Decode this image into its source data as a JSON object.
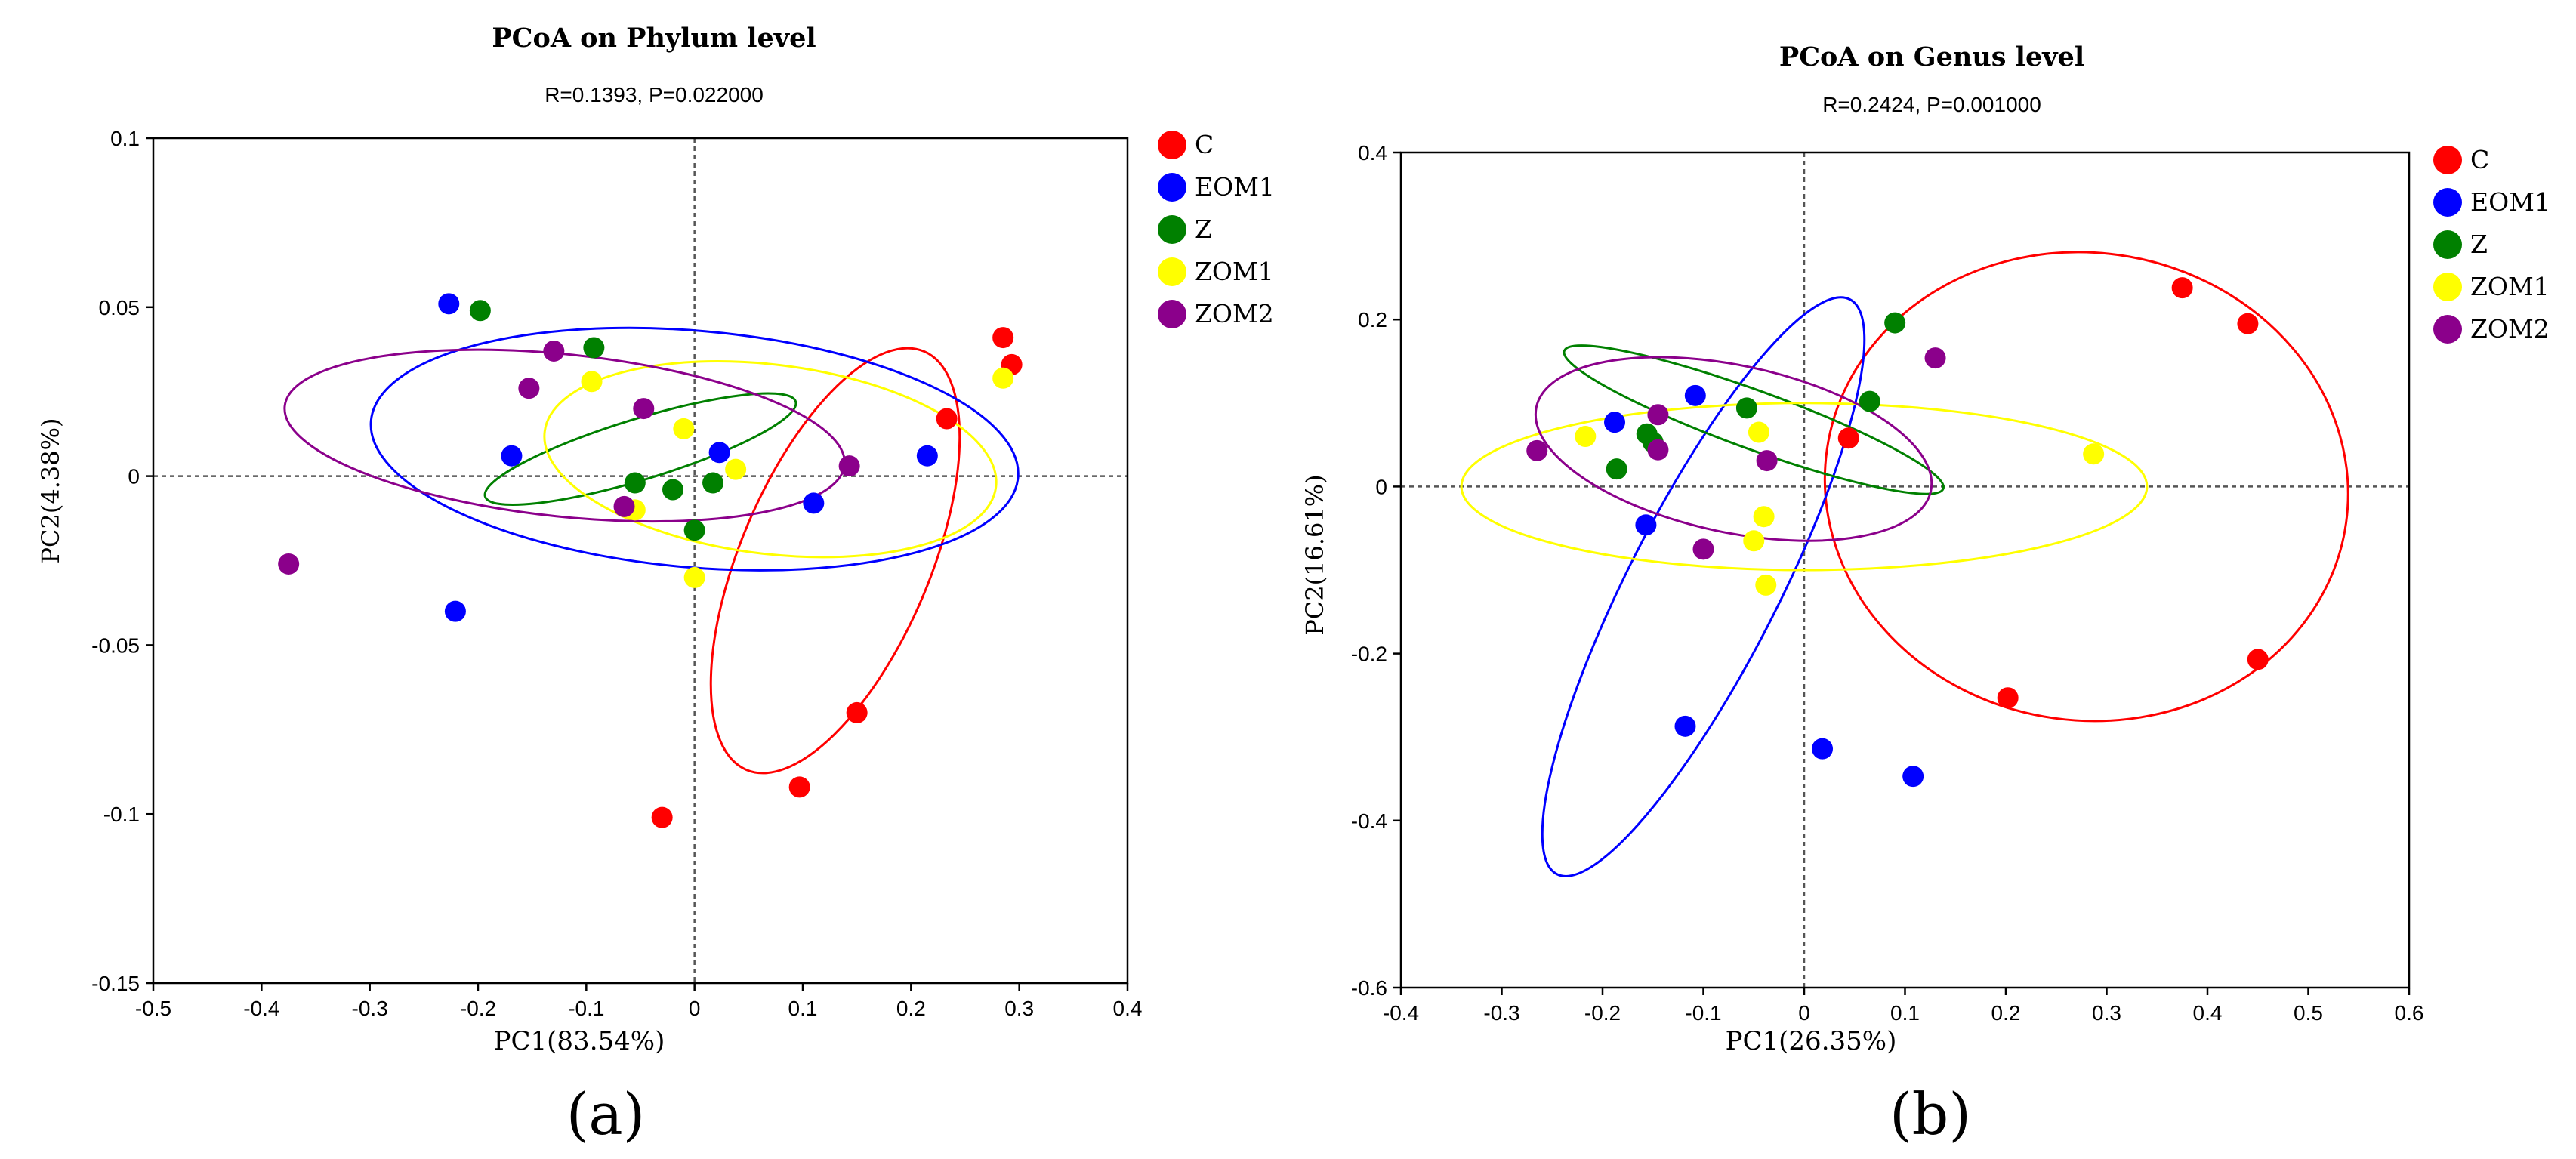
{
  "chart_data": [
    {
      "type": "scatter",
      "title": "PCoA on Phylum level",
      "subtitle": "R=0.1393, P=0.022000",
      "xlabel": "PC1(83.54%)",
      "ylabel": "PC2(4.38%)",
      "panel_label": "(a)",
      "xlim": [
        -0.5,
        0.4
      ],
      "ylim": [
        -0.15,
        0.1
      ],
      "xticks": [
        -0.5,
        -0.4,
        -0.3,
        -0.2,
        -0.1,
        0,
        0.1,
        0.2,
        0.3,
        0.4
      ],
      "xtick_labels": [
        "-0.5",
        "-0.4",
        "-0.3",
        "-0.2",
        "-0.1",
        "0",
        "0.1",
        "0.2",
        "0.3",
        "0.4"
      ],
      "yticks": [
        -0.15,
        -0.1,
        -0.05,
        0,
        0.05,
        0.1
      ],
      "ytick_labels": [
        "-0.15",
        "-0.1",
        "-0.05",
        "0",
        "0.05",
        "0.1"
      ],
      "reference_lines": {
        "x": 0,
        "y": 0
      },
      "legend_position": "right",
      "series": [
        {
          "name": "C",
          "color": "#ff0000",
          "points": [
            [
              0.285,
              0.041
            ],
            [
              0.293,
              0.033
            ],
            [
              0.233,
              0.017
            ],
            [
              0.15,
              -0.07
            ],
            [
              0.097,
              -0.092
            ],
            [
              -0.03,
              -0.101
            ]
          ],
          "ellipse": {
            "cx": 0.13,
            "cy": -0.025,
            "rx": 0.21,
            "ry": 0.028,
            "angle": -67
          }
        },
        {
          "name": "EOM1",
          "color": "#0000ff",
          "points": [
            [
              -0.227,
              0.051
            ],
            [
              -0.169,
              0.006
            ],
            [
              0.023,
              0.007
            ],
            [
              0.11,
              -0.008
            ],
            [
              0.215,
              0.006
            ],
            [
              -0.221,
              -0.04
            ]
          ],
          "ellipse": {
            "cx": 0.0,
            "cy": 0.008,
            "rx": 0.3,
            "ry": 0.035,
            "angle": 5
          }
        },
        {
          "name": "Z",
          "color": "#008000",
          "points": [
            [
              -0.198,
              0.049
            ],
            [
              -0.093,
              0.038
            ],
            [
              -0.055,
              -0.002
            ],
            [
              -0.02,
              -0.004
            ],
            [
              0.017,
              -0.002
            ],
            [
              0.0,
              -0.016
            ]
          ],
          "ellipse": {
            "cx": -0.05,
            "cy": 0.008,
            "rx": 0.15,
            "ry": 0.009,
            "angle": -17
          }
        },
        {
          "name": "ZOM1",
          "color": "#ffff00",
          "points": [
            [
              -0.095,
              0.028
            ],
            [
              -0.01,
              0.014
            ],
            [
              0.038,
              0.002
            ],
            [
              -0.055,
              -0.01
            ],
            [
              0.0,
              -0.03
            ],
            [
              0.285,
              0.029
            ]
          ],
          "ellipse": {
            "cx": 0.07,
            "cy": 0.005,
            "rx": 0.21,
            "ry": 0.028,
            "angle": 7
          }
        },
        {
          "name": "ZOM2",
          "color": "#8b008b",
          "points": [
            [
              -0.13,
              0.037
            ],
            [
              -0.153,
              0.026
            ],
            [
              -0.047,
              0.02
            ],
            [
              0.143,
              0.003
            ],
            [
              -0.065,
              -0.009
            ],
            [
              -0.375,
              -0.026
            ]
          ],
          "ellipse": {
            "cx": -0.12,
            "cy": 0.012,
            "rx": 0.26,
            "ry": 0.024,
            "angle": 6
          }
        }
      ]
    },
    {
      "type": "scatter",
      "title": "PCoA on Genus level",
      "subtitle": "R=0.2424, P=0.001000",
      "xlabel": "PC1(26.35%)",
      "ylabel": "PC2(16.61%)",
      "panel_label": "(b)",
      "xlim": [
        -0.4,
        0.6
      ],
      "ylim": [
        -0.6,
        0.4
      ],
      "xticks": [
        -0.4,
        -0.3,
        -0.2,
        -0.1,
        0,
        0.1,
        0.2,
        0.3,
        0.4,
        0.5,
        0.6
      ],
      "xtick_labels": [
        "-0.4",
        "-0.3",
        "-0.2",
        "-0.1",
        "0",
        "0.1",
        "0.2",
        "0.3",
        "0.4",
        "0.5",
        "0.6"
      ],
      "yticks": [
        -0.6,
        -0.4,
        -0.2,
        0,
        0.2,
        0.4
      ],
      "ytick_labels": [
        "-0.6",
        "-0.4",
        "-0.2",
        "0",
        "0.2",
        "0.4"
      ],
      "reference_lines": {
        "x": 0,
        "y": 0
      },
      "legend_position": "right",
      "series": [
        {
          "name": "C",
          "color": "#ff0000",
          "points": [
            [
              0.375,
              0.238
            ],
            [
              0.44,
              0.195
            ],
            [
              0.044,
              0.058
            ],
            [
              0.45,
              -0.207
            ],
            [
              0.202,
              -0.253
            ]
          ],
          "ellipse": {
            "cx": 0.28,
            "cy": 0.0,
            "rx": 0.26,
            "ry": 0.28,
            "angle": 8
          }
        },
        {
          "name": "EOM1",
          "color": "#0000ff",
          "points": [
            [
              -0.188,
              0.077
            ],
            [
              -0.108,
              0.109
            ],
            [
              -0.157,
              -0.046
            ],
            [
              -0.118,
              -0.287
            ],
            [
              0.018,
              -0.314
            ],
            [
              0.108,
              -0.347
            ]
          ],
          "ellipse": {
            "cx": -0.1,
            "cy": -0.12,
            "rx": 0.32,
            "ry": 0.09,
            "angle": -63
          }
        },
        {
          "name": "Z",
          "color": "#008000",
          "points": [
            [
              0.09,
              0.196
            ],
            [
              -0.057,
              0.094
            ],
            [
              0.065,
              0.102
            ],
            [
              -0.156,
              0.063
            ],
            [
              -0.15,
              0.053
            ],
            [
              -0.186,
              0.021
            ]
          ],
          "ellipse": {
            "cx": -0.05,
            "cy": 0.08,
            "rx": 0.2,
            "ry": 0.035,
            "angle": 20
          }
        },
        {
          "name": "ZOM1",
          "color": "#ffff00",
          "points": [
            [
              -0.217,
              0.06
            ],
            [
              -0.045,
              0.065
            ],
            [
              0.287,
              0.039
            ],
            [
              -0.04,
              -0.036
            ],
            [
              -0.05,
              -0.065
            ],
            [
              -0.038,
              -0.118
            ]
          ],
          "ellipse": {
            "cx": 0.0,
            "cy": 0.0,
            "rx": 0.34,
            "ry": 0.1,
            "angle": 0
          }
        },
        {
          "name": "ZOM2",
          "color": "#8b008b",
          "points": [
            [
              -0.265,
              0.043
            ],
            [
              -0.145,
              0.086
            ],
            [
              -0.145,
              0.044
            ],
            [
              -0.037,
              0.031
            ],
            [
              0.13,
              0.154
            ],
            [
              -0.1,
              -0.075
            ]
          ],
          "ellipse": {
            "cx": -0.07,
            "cy": 0.045,
            "rx": 0.2,
            "ry": 0.1,
            "angle": 12
          }
        }
      ]
    }
  ]
}
